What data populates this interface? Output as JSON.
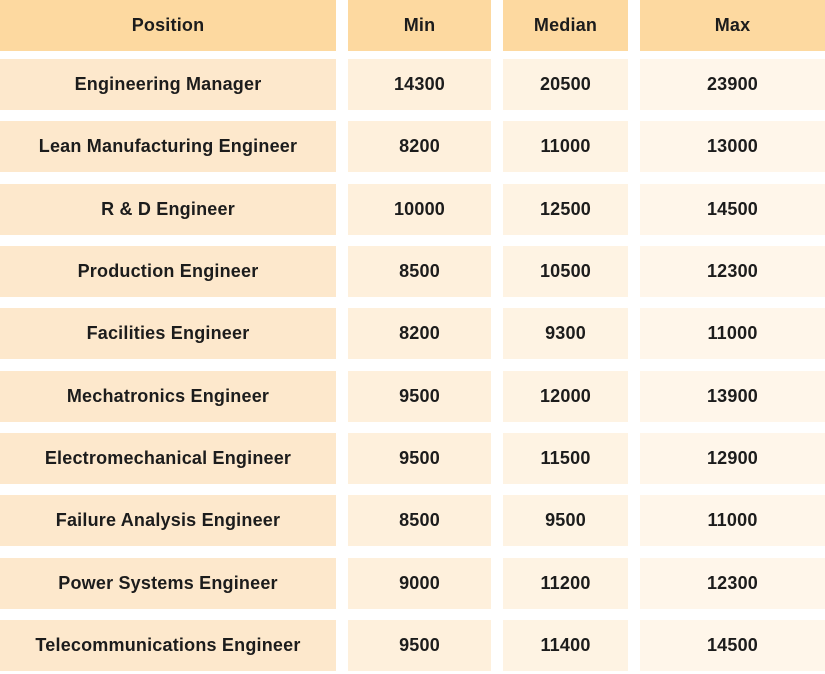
{
  "table": {
    "headers": [
      "Position",
      "Min",
      "Median",
      "Max"
    ],
    "rows": [
      [
        "Engineering Manager",
        "14300",
        "20500",
        "23900"
      ],
      [
        "Lean Manufacturing Engineer",
        "8200",
        "11000",
        "13000"
      ],
      [
        "R & D Engineer",
        "10000",
        "12500",
        "14500"
      ],
      [
        "Production Engineer",
        "8500",
        "10500",
        "12300"
      ],
      [
        "Facilities Engineer",
        "8200",
        "9300",
        "11000"
      ],
      [
        "Mechatronics Engineer",
        "9500",
        "12000",
        "13900"
      ],
      [
        "Electromechanical Engineer",
        "9500",
        "11500",
        "12900"
      ],
      [
        "Failure Analysis Engineer",
        "8500",
        "9500",
        "11000"
      ],
      [
        "Power Systems Engineer",
        "9000",
        "11200",
        "12300"
      ],
      [
        "Telecommunications Engineer",
        "9500",
        "11400",
        "14500"
      ]
    ]
  },
  "colors": {
    "header_bg": "#fdd9a0",
    "position_bg": "#fde8cc",
    "value_bg": "#fef3e3",
    "text": "#1c1c1c"
  }
}
